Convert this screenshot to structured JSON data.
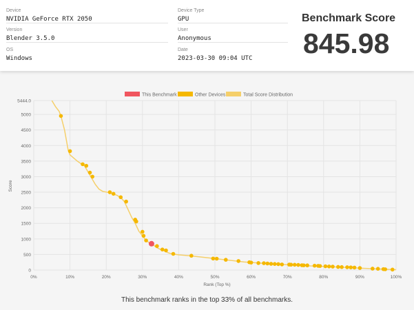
{
  "info": {
    "device_label": "Device",
    "device_value": "NVIDIA GeForce RTX 2050",
    "version_label": "Version",
    "version_value": "Blender 3.5.0",
    "os_label": "OS",
    "os_value": "Windows",
    "device_type_label": "Device Type",
    "device_type_value": "GPU",
    "user_label": "User",
    "user_value": "Anonymous",
    "date_label": "Date",
    "date_value": "2023-03-30 09:04 UTC"
  },
  "score": {
    "title": "Benchmark Score",
    "value": "845.98"
  },
  "caption": "This benchmark ranks in the top 33% of all benchmarks.",
  "colors": {
    "this_benchmark": "#f0565f",
    "other_devices": "#f5b800",
    "distribution": "#f5cf6a"
  },
  "chart_data": {
    "type": "line",
    "legend_placement": "top-center",
    "grid": true,
    "xlabel": "Rank (Top %)",
    "ylabel": "Score",
    "xlim": [
      0,
      100
    ],
    "ylim": [
      0,
      5444.0
    ],
    "x_ticks": [
      "0%",
      "10%",
      "20%",
      "30%",
      "40%",
      "50%",
      "60%",
      "70%",
      "80%",
      "90%",
      "100%"
    ],
    "y_ticks": [
      "0",
      "500",
      "1000",
      "1500",
      "2000",
      "2500",
      "3000",
      "3500",
      "4000",
      "4500",
      "5000",
      "5444.0"
    ],
    "y_tick_values": [
      0,
      500,
      1000,
      1500,
      2000,
      2500,
      3000,
      3500,
      4000,
      4500,
      5000,
      5444
    ],
    "legend": [
      "This Benchmark",
      "Other Devices",
      "Total Score Distribution"
    ],
    "distribution": [
      [
        5,
        5444
      ],
      [
        6,
        5250
      ],
      [
        7,
        5100
      ],
      [
        7.5,
        4950
      ],
      [
        8.5,
        4500
      ],
      [
        9.5,
        3850
      ],
      [
        10,
        3700
      ],
      [
        11,
        3600
      ],
      [
        12,
        3500
      ],
      [
        13,
        3420
      ],
      [
        14,
        3350
      ],
      [
        15,
        3150
      ],
      [
        16,
        2950
      ],
      [
        17,
        2750
      ],
      [
        18,
        2600
      ],
      [
        19,
        2530
      ],
      [
        21,
        2480
      ],
      [
        23,
        2400
      ],
      [
        24,
        2330
      ],
      [
        25,
        2200
      ],
      [
        26,
        1950
      ],
      [
        27,
        1700
      ],
      [
        28,
        1500
      ],
      [
        29,
        1250
      ],
      [
        30,
        1100
      ],
      [
        31,
        950
      ],
      [
        32,
        870
      ],
      [
        33,
        800
      ],
      [
        34,
        720
      ],
      [
        35,
        660
      ],
      [
        36,
        620
      ],
      [
        37,
        560
      ],
      [
        38,
        520
      ],
      [
        40,
        490
      ],
      [
        43,
        460
      ],
      [
        46,
        420
      ],
      [
        49,
        380
      ],
      [
        52,
        340
      ],
      [
        55,
        300
      ],
      [
        58,
        260
      ],
      [
        62,
        225
      ],
      [
        66,
        195
      ],
      [
        70,
        170
      ],
      [
        75,
        140
      ],
      [
        80,
        115
      ],
      [
        85,
        90
      ],
      [
        90,
        60
      ],
      [
        95,
        35
      ],
      [
        100,
        10
      ]
    ],
    "other_devices": [
      [
        7.5,
        4950
      ],
      [
        10,
        3820
      ],
      [
        13.5,
        3400
      ],
      [
        14.5,
        3350
      ],
      [
        15.5,
        3130
      ],
      [
        16.2,
        3000
      ],
      [
        21,
        2500
      ],
      [
        22,
        2450
      ],
      [
        24,
        2340
      ],
      [
        25.5,
        2200
      ],
      [
        28,
        1620
      ],
      [
        28.3,
        1560
      ],
      [
        30,
        1230
      ],
      [
        30.3,
        1100
      ],
      [
        31,
        950
      ],
      [
        34,
        770
      ],
      [
        35.5,
        660
      ],
      [
        36.5,
        630
      ],
      [
        38.5,
        520
      ],
      [
        43.5,
        460
      ],
      [
        49.5,
        370
      ],
      [
        50.5,
        365
      ],
      [
        53,
        330
      ],
      [
        56.5,
        290
      ],
      [
        59.5,
        250
      ],
      [
        60,
        240
      ],
      [
        62,
        225
      ],
      [
        63.5,
        220
      ],
      [
        64.5,
        210
      ],
      [
        65.5,
        200
      ],
      [
        66.5,
        195
      ],
      [
        67.5,
        190
      ],
      [
        68.5,
        180
      ],
      [
        70.5,
        175
      ],
      [
        71,
        172
      ],
      [
        72,
        170
      ],
      [
        73,
        165
      ],
      [
        74,
        155
      ],
      [
        74.5,
        152
      ],
      [
        75.5,
        150
      ],
      [
        77.5,
        140
      ],
      [
        78.5,
        135
      ],
      [
        79,
        130
      ],
      [
        80.5,
        120
      ],
      [
        81.5,
        115
      ],
      [
        82.5,
        110
      ],
      [
        84,
        100
      ],
      [
        85,
        95
      ],
      [
        86.5,
        90
      ],
      [
        87.5,
        85
      ],
      [
        88.5,
        80
      ],
      [
        90,
        65
      ],
      [
        93.5,
        45
      ],
      [
        95,
        40
      ],
      [
        96.5,
        30
      ],
      [
        97,
        25
      ],
      [
        99,
        15
      ]
    ],
    "this_benchmark": [
      32.5,
      845.98
    ]
  }
}
